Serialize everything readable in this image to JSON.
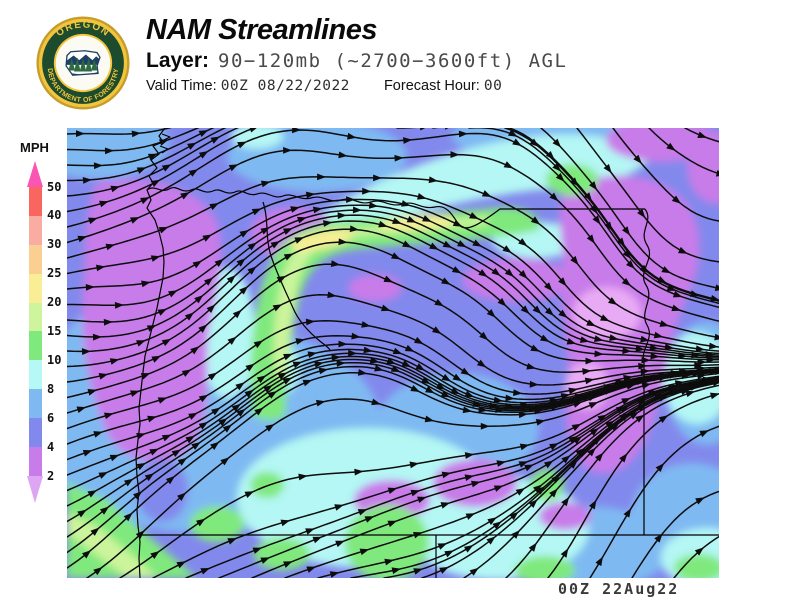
{
  "logo": {
    "arc_top": "OREGON",
    "arc_bottom": "DEPARTMENT OF FORESTRY"
  },
  "header": {
    "title": "NAM Streamlines",
    "layer_label": "Layer:",
    "layer_value": "90−120mb (~2700−3600ft) AGL",
    "valid_time_label": "Valid Time:",
    "valid_time_value": "00Z 08/22/2022",
    "forecast_label": "Forecast Hour:",
    "forecast_value": "00"
  },
  "legend": {
    "unit": "MPH",
    "ticks": [
      50,
      40,
      30,
      25,
      20,
      15,
      10,
      8,
      6,
      4,
      2
    ],
    "segment_colors": [
      "#f9655f",
      "#f9ada2",
      "#f9cf92",
      "#f9ee95",
      "#cff49e",
      "#80e97d",
      "#b6f8f5",
      "#7fb9f2",
      "#8289ec",
      "#c87ce9"
    ],
    "above_max_color": "#fa55b2",
    "below_min_color": "#dda6f3"
  },
  "map": {
    "stamp": "00Z 22Aug22",
    "base_speed_color": "#8289ec"
  }
}
